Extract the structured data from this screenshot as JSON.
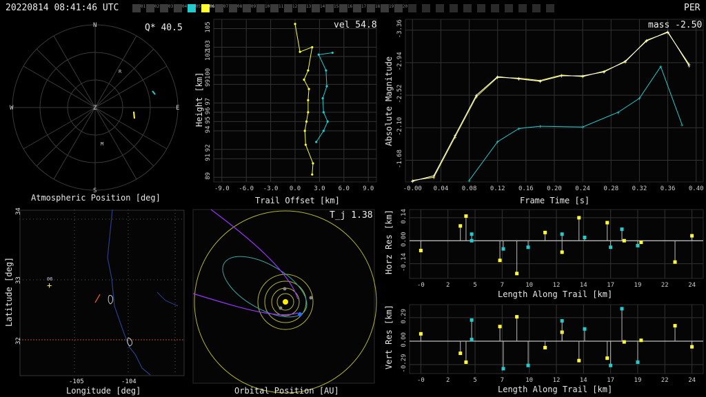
{
  "header": {
    "timestamp": "20220814 08:41:46 UTC",
    "site": "PER",
    "stations": [
      "01",
      "02",
      "03",
      "04",
      "05",
      "06",
      "07",
      "08",
      "09",
      "10",
      "11",
      "12",
      "13",
      "14",
      "15",
      "16",
      "17",
      "18",
      "19",
      "20"
    ],
    "active_cyan": "05",
    "active_yellow": "06",
    "empty_boxes": 11
  },
  "panels": {
    "atmospheric": {
      "title": "Atmospheric Position [deg]",
      "stat": "Q* 40.5",
      "compass": [
        "N",
        "E",
        "S",
        "W",
        "Z"
      ],
      "markers": [
        "R",
        "M"
      ]
    },
    "trail": {
      "title": "Trail Offset [km]",
      "ylabel": "Height [km]",
      "stat": "vel 54.8",
      "xticks": [
        "-9.0",
        "-6.0",
        "-3.0",
        "0.0",
        "3.0",
        "6.0",
        "9.0"
      ],
      "yticks": [
        "89",
        "91",
        "92",
        "94",
        "95",
        "96",
        "97",
        "99",
        "100",
        "102",
        "103",
        "105"
      ]
    },
    "magnitude": {
      "title": "Frame Time [s]",
      "ylabel": "Absolute Magnitude",
      "stat": "mass -2.50",
      "xticks": [
        "-0.00",
        "0.04",
        "0.08",
        "0.12",
        "0.16",
        "0.20",
        "0.24",
        "0.28",
        "0.32",
        "0.36",
        "0.40"
      ],
      "yticks": [
        "-3.36",
        "-2.94",
        "-2.52",
        "-2.10",
        "-1.68"
      ]
    },
    "map": {
      "title": "Longitude [deg]",
      "ylabel": "Latitude [deg]",
      "xticks": [
        "-105",
        "-104"
      ],
      "yticks": [
        "34",
        "33",
        "32"
      ],
      "station_label": "06"
    },
    "orbit": {
      "title": "Orbital Position [AU]",
      "stat": "T_j 1.38"
    },
    "horz": {
      "title": "Length Along Trail [km]",
      "ylabel": "Horz Res [km]",
      "xticks": [
        "-0",
        "2",
        "5",
        "7",
        "10",
        "12",
        "14",
        "17",
        "19",
        "22",
        "24"
      ],
      "yticks": [
        "0.14",
        "0.00",
        "-0.14"
      ]
    },
    "vert": {
      "title": "Length Along Trail [km]",
      "ylabel": "Vert Res [km]",
      "xticks": [
        "-0",
        "2",
        "5",
        "7",
        "10",
        "12",
        "14",
        "17",
        "19",
        "22",
        "24"
      ],
      "yticks": [
        "0.29",
        "0.00",
        "-0.29"
      ]
    }
  },
  "chart_data": [
    {
      "type": "line",
      "title": "",
      "xlabel": "Frame Time [s]",
      "ylabel": "Absolute Magnitude",
      "xlim": [
        -0.01,
        0.41
      ],
      "ylim": [
        -1.4,
        -3.5
      ],
      "series": [
        {
          "color": "#ffff33",
          "x": [
            0.0,
            0.03,
            0.06,
            0.09,
            0.12,
            0.15,
            0.18,
            0.21,
            0.24,
            0.27,
            0.3,
            0.33,
            0.36,
            0.39
          ],
          "y": [
            -1.42,
            -1.46,
            -1.98,
            -2.5,
            -2.75,
            -2.74,
            -2.71,
            -2.78,
            -2.76,
            -2.83,
            -2.95,
            -3.23,
            -3.33,
            -2.92
          ]
        },
        {
          "color": "#ffffff",
          "x": [
            0.0,
            0.03,
            0.06,
            0.09,
            0.12,
            0.15,
            0.18,
            0.21,
            0.24,
            0.27,
            0.3,
            0.33,
            0.36,
            0.39
          ],
          "y": [
            -1.41,
            -1.48,
            -2.0,
            -2.52,
            -2.76,
            -2.73,
            -2.7,
            -2.77,
            -2.77,
            -2.82,
            -2.96,
            -3.22,
            -3.34,
            -2.9
          ]
        },
        {
          "color": "#22cccc",
          "x": [
            0.08,
            0.12,
            0.15,
            0.18,
            0.24,
            0.29,
            0.32,
            0.35,
            0.38
          ],
          "y": [
            -1.42,
            -1.92,
            -2.09,
            -2.12,
            -2.11,
            -2.3,
            -2.48,
            -2.89,
            -2.14
          ]
        }
      ]
    },
    {
      "type": "scatter",
      "xlabel": "Trail Offset [km]",
      "ylabel": "Height [km]",
      "xlim": [
        -10,
        10
      ],
      "ylim": [
        88.5,
        106
      ],
      "series": [
        {
          "color": "#ffff33",
          "x": [
            0.0,
            0.6,
            2.1,
            1.6,
            1.1,
            1.7,
            1.6,
            1.6,
            1.4,
            1.2,
            1.3,
            2.2,
            2.1
          ],
          "y": [
            105.5,
            102.5,
            103.0,
            100.5,
            99.5,
            98.5,
            97.3,
            96.0,
            95.0,
            94.0,
            92.5,
            90.5,
            89.3
          ]
        },
        {
          "color": "#22cccc",
          "x": [
            4.6,
            2.9,
            3.8,
            3.9,
            3.4,
            3.5,
            4.0,
            3.5,
            2.6
          ],
          "y": [
            102.4,
            102.2,
            100.5,
            98.8,
            97.5,
            96.0,
            95.0,
            94.0,
            92.8
          ]
        }
      ]
    },
    {
      "type": "scatter",
      "xlabel": "Length Along Trail [km]",
      "ylabel": "Horz Res [km]",
      "xlim": [
        -1,
        25
      ],
      "ylim": [
        -0.23,
        0.19
      ],
      "series": [
        {
          "color": "#ffff33",
          "x": [
            0.0,
            3.5,
            4.0,
            7.0,
            8.5,
            11.0,
            12.5,
            14.0,
            16.5,
            18.0,
            19.5,
            22.5,
            24.0
          ],
          "y": [
            -0.06,
            0.09,
            0.15,
            -0.12,
            -0.2,
            0.05,
            -0.07,
            0.14,
            0.11,
            0.0,
            -0.01,
            -0.13,
            0.03
          ]
        },
        {
          "color": "#22cccc",
          "x": [
            4.5,
            4.5,
            7.3,
            9.5,
            12.5,
            14.5,
            16.8,
            17.8,
            19.2
          ],
          "y": [
            0.04,
            0.0,
            -0.05,
            -0.04,
            0.04,
            0.02,
            -0.04,
            0.07,
            -0.03
          ]
        }
      ]
    },
    {
      "type": "scatter",
      "xlabel": "Length Along Trail [km]",
      "ylabel": "Vert Res [km]",
      "xlim": [
        -1,
        25
      ],
      "ylim": [
        -0.4,
        0.45
      ],
      "series": [
        {
          "color": "#ffff33",
          "x": [
            0.0,
            3.5,
            4.0,
            7.0,
            8.5,
            11.0,
            12.5,
            14.0,
            16.5,
            18.0,
            19.5,
            22.5,
            24.0
          ],
          "y": [
            0.09,
            -0.15,
            -0.26,
            0.18,
            0.3,
            -0.08,
            0.11,
            -0.24,
            -0.21,
            -0.01,
            0.01,
            0.19,
            -0.07
          ]
        },
        {
          "color": "#22cccc",
          "x": [
            4.5,
            4.5,
            7.3,
            9.5,
            12.5,
            14.5,
            16.8,
            17.8,
            19.2
          ],
          "y": [
            0.26,
            0.02,
            -0.34,
            -0.3,
            0.25,
            0.15,
            -0.3,
            0.4,
            -0.26
          ]
        }
      ]
    }
  ]
}
